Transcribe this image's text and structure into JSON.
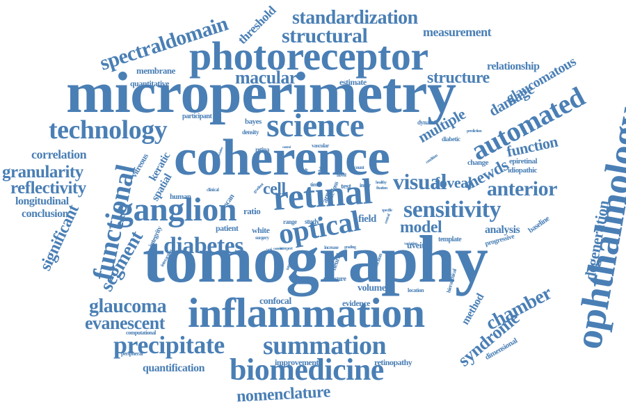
{
  "word_color": "#4a7fb5",
  "background_color": "#ffffff",
  "words": [
    "microperimetry",
    "tomography",
    "coherence",
    "photoreceptor",
    "inflammation",
    "biomedicine",
    "science",
    "ophthalmology",
    "retinal",
    "summation",
    "ganglion",
    "precipitate",
    "optical",
    "technology",
    "automated",
    "sensitivity",
    "functional",
    "diabetes",
    "structural",
    "standardization",
    "spectraldomain",
    "evanescent",
    "glaucoma",
    "granularity",
    "reflectivity",
    "degeneration",
    "nomenclature",
    "visual",
    "anterior",
    "chamber",
    "syndrome",
    "segment",
    "significant",
    "mewds",
    "function",
    "multiple",
    "damage",
    "glaucomatous",
    "structure",
    "measurement",
    "threshold",
    "macular",
    "foveal",
    "cell",
    "model",
    "analysis",
    "correlation",
    "longitudinal",
    "conclusion",
    "quantification",
    "relationship",
    "membrane",
    "quantitative",
    "estimate",
    "participant",
    "bayes",
    "density",
    "dynamic",
    "prediction",
    "diabetic",
    "vascular",
    "retina",
    "condition",
    "change",
    "epiretinal",
    "idiopathic",
    "keratic",
    "spatial",
    "vitreous",
    "human",
    "ratio",
    "scan",
    "clinical",
    "gradient",
    "patient",
    "white",
    "surgery",
    "study",
    "range",
    "field",
    "uveitic",
    "template",
    "progressive",
    "baseline",
    "integrity",
    "acuity",
    "interpret",
    "increase",
    "grading",
    "traction",
    "neural",
    "measure",
    "volume",
    "location",
    "hierarchical",
    "confocal",
    "evidence",
    "improvement",
    "retinopathy",
    "computational",
    "peripheral",
    "method",
    "dimensional",
    "time",
    "area",
    "test",
    "inner",
    "novel",
    "adult",
    "healthy",
    "fixation",
    "result",
    "life-loss",
    "count",
    "association",
    "specific",
    "variation",
    "control",
    "introduce",
    "central",
    "interaction",
    "context",
    "healthy",
    "age",
    "early",
    "dual",
    "stage",
    "follow"
  ]
}
